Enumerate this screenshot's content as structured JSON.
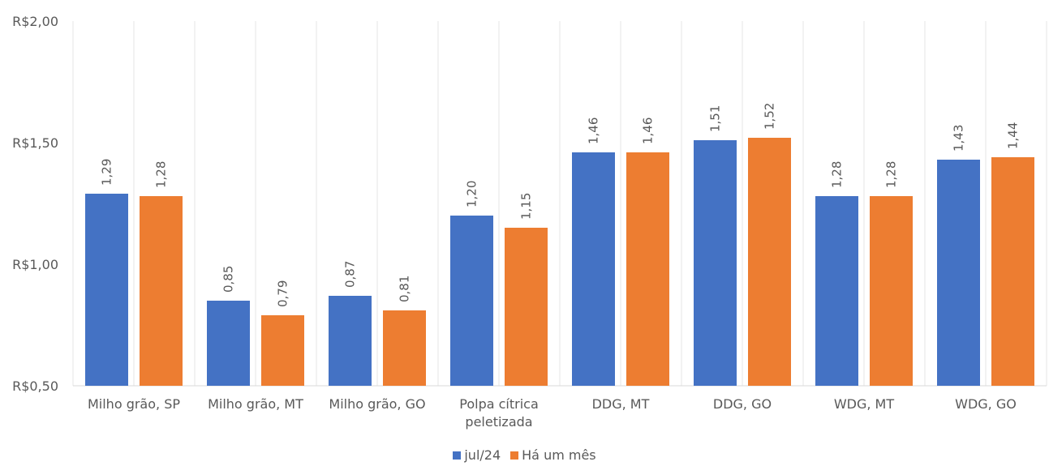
{
  "chart_data": {
    "type": "bar",
    "categories": [
      [
        "Milho grão, SP"
      ],
      [
        "Milho grão, MT"
      ],
      [
        "Milho grão, GO"
      ],
      [
        "Polpa cítrica",
        "peletizada"
      ],
      [
        "DDG, MT"
      ],
      [
        "DDG, GO"
      ],
      [
        "WDG, MT"
      ],
      [
        "WDG, GO"
      ]
    ],
    "series": [
      {
        "name": "jul/24",
        "color": "#4472C4",
        "values": [
          1.29,
          0.85,
          0.87,
          1.2,
          1.46,
          1.51,
          1.28,
          1.43
        ],
        "labels": [
          "1,29",
          "0,85",
          "0,87",
          "1,20",
          "1,46",
          "1,51",
          "1,28",
          "1,43"
        ]
      },
      {
        "name": "Há um mês",
        "color": "#ED7D31",
        "values": [
          1.28,
          0.79,
          0.81,
          1.15,
          1.46,
          1.52,
          1.28,
          1.44
        ],
        "labels": [
          "1,28",
          "0,79",
          "0,81",
          "1,15",
          "1,46",
          "1,52",
          "1,28",
          "1,44"
        ]
      }
    ],
    "ylim": [
      0.5,
      2.0
    ],
    "yticks": [
      0.5,
      1.0,
      1.5,
      2.0
    ],
    "ytick_labels": [
      "R$0,50",
      "R$1,00",
      "R$1,50",
      "R$2,00"
    ],
    "grid": "vertical",
    "legend": "bottom-center"
  }
}
